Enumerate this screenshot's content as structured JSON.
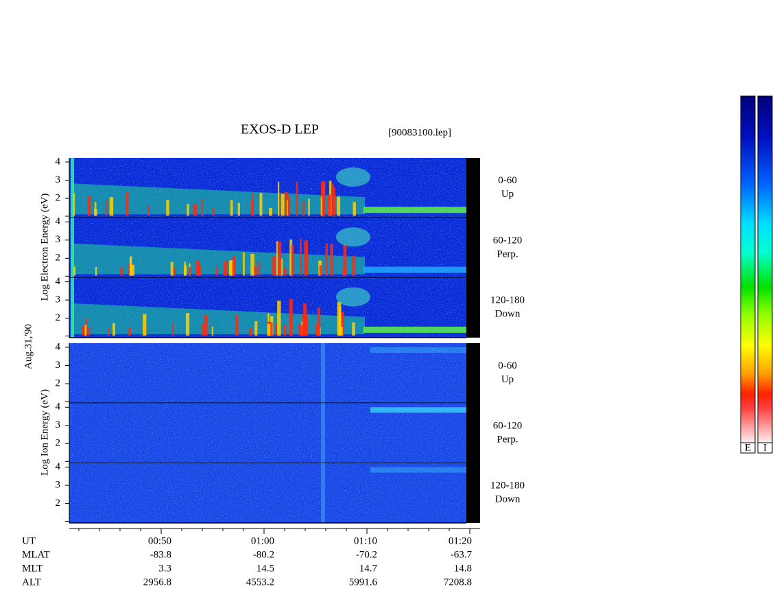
{
  "header": {
    "title": "EXOS-D LEP",
    "file": "[90083100.lep]"
  },
  "y_axis": {
    "electron": "Log Electron Energy (eV)",
    "ion": "Log Ion Energy (eV)",
    "date": "Aug.31,'90",
    "ticks": [
      "4",
      "3",
      "2"
    ]
  },
  "panels": [
    {
      "range": "0-60",
      "dir": "Up"
    },
    {
      "range": "60-120",
      "dir": "Perp."
    },
    {
      "range": "120-180",
      "dir": "Down"
    }
  ],
  "colorbar": {
    "labels": [
      "E",
      "I"
    ]
  },
  "orbit": {
    "rows": [
      [
        "UT",
        "00:50",
        "01:00",
        "01:10",
        "01:20"
      ],
      [
        "MLAT",
        "-83.8",
        "-80.2",
        "-70.2",
        "-63.7"
      ],
      [
        "MLT",
        "3.3",
        "14.5",
        "14.7",
        "14.8"
      ],
      [
        "ALT",
        "2956.8",
        "4553.2",
        "5991.6",
        "7208.8"
      ]
    ]
  }
}
